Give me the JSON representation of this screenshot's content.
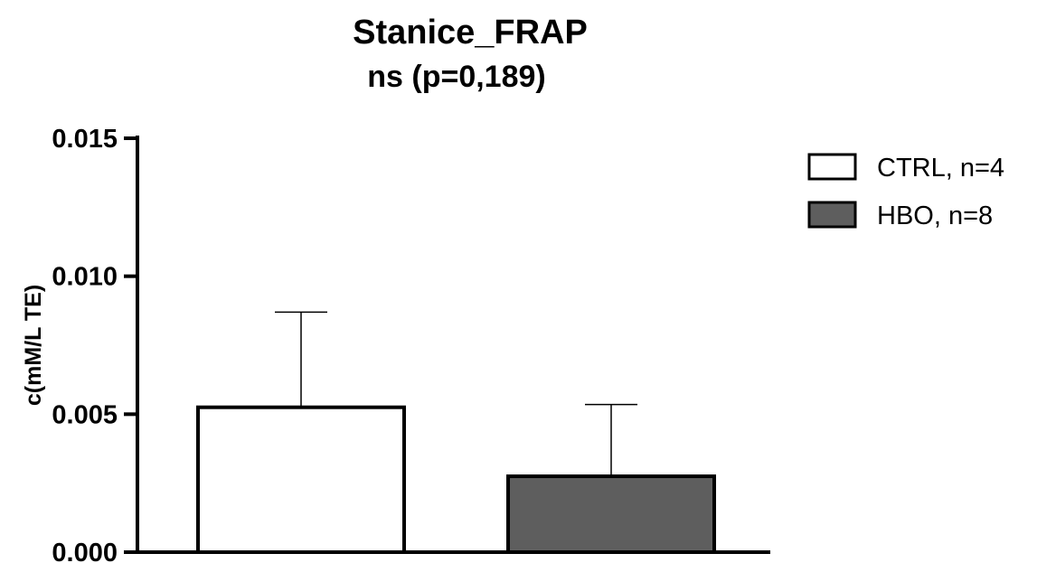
{
  "chart_data": {
    "type": "bar",
    "title": "Stanice_FRAP",
    "subtitle": "ns (p=0,189)",
    "xlabel": "",
    "ylabel": "c(mM/L TE)",
    "ylim": [
      0,
      0.015
    ],
    "yticks": [
      "0.000",
      "0.005",
      "0.010",
      "0.015"
    ],
    "ytick_values": [
      0,
      0.005,
      0.01,
      0.015
    ],
    "categories": [
      "CTRL, n=4",
      "HBO, n=8"
    ],
    "values": [
      0.00525,
      0.00275
    ],
    "error_upper": [
      0.0087,
      0.00535
    ],
    "colors": [
      "#ffffff",
      "#5e5e5e"
    ],
    "legend": {
      "position": "top-right",
      "entries": [
        "CTRL, n=4",
        "HBO, n=8"
      ]
    },
    "grid": false
  }
}
